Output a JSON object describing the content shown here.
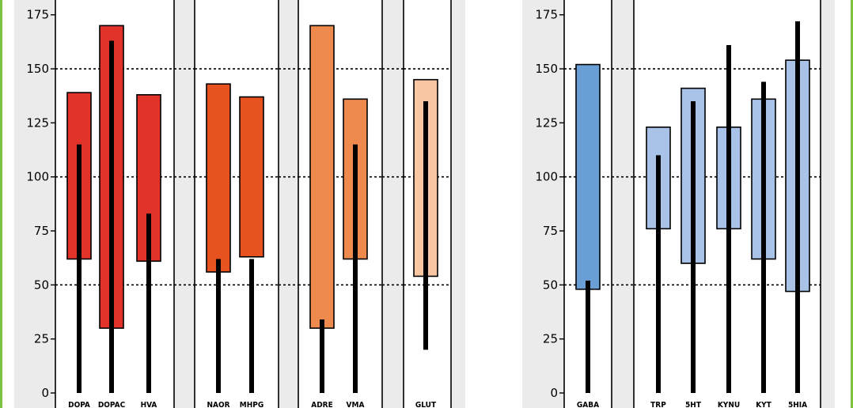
{
  "chart_data": {
    "type": "bar",
    "ylim": [
      0,
      185
    ],
    "ymax_shown": 175,
    "y_ticks": [
      0,
      25,
      50,
      75,
      100,
      125,
      150,
      175
    ],
    "reference_lines": [
      50,
      100,
      150
    ],
    "colors": {
      "frame": "#7dc242",
      "panel_bg": "#ebebeb",
      "group_bg": "#ffffff",
      "stroke": "#000000",
      "dotted": "#000000"
    },
    "panels": [
      {
        "groups": [
          {
            "categories": [
              "DOPA",
              "DOPAC",
              "HVA"
            ],
            "color": "#e2332b",
            "range_low": [
              62,
              30,
              61
            ],
            "range_high": [
              139,
              170,
              138
            ],
            "values": [
              115,
              163,
              83
            ]
          },
          {
            "categories": [
              "NAOR",
              "MHPG"
            ],
            "color": "#e8521f",
            "range_low": [
              56,
              63
            ],
            "range_high": [
              143,
              137
            ],
            "values": [
              62,
              62
            ]
          },
          {
            "categories": [
              "ADRE",
              "VMA"
            ],
            "color": "#ef8a4e",
            "range_low": [
              30,
              62
            ],
            "range_high": [
              170,
              136
            ],
            "values": [
              34,
              115
            ]
          },
          {
            "categories": [
              "GLUT"
            ],
            "color": "#f8c6a2",
            "range_low": [
              54
            ],
            "range_high": [
              145
            ],
            "values": [
              135
            ],
            "value_low": [
              20
            ]
          }
        ]
      },
      {
        "groups": [
          {
            "categories": [
              "GABA"
            ],
            "color": "#6a9fd5",
            "range_low": [
              48
            ],
            "range_high": [
              152
            ],
            "values": [
              52
            ]
          },
          {
            "categories": [
              "TRP",
              "5HT",
              "KYNU",
              "KYT",
              "5HIA"
            ],
            "color": "#a9c2e7",
            "range_low": [
              76,
              60,
              76,
              62,
              47
            ],
            "range_high": [
              123,
              141,
              123,
              136,
              154
            ],
            "values": [
              110,
              135,
              161,
              144,
              172
            ]
          }
        ]
      }
    ]
  }
}
